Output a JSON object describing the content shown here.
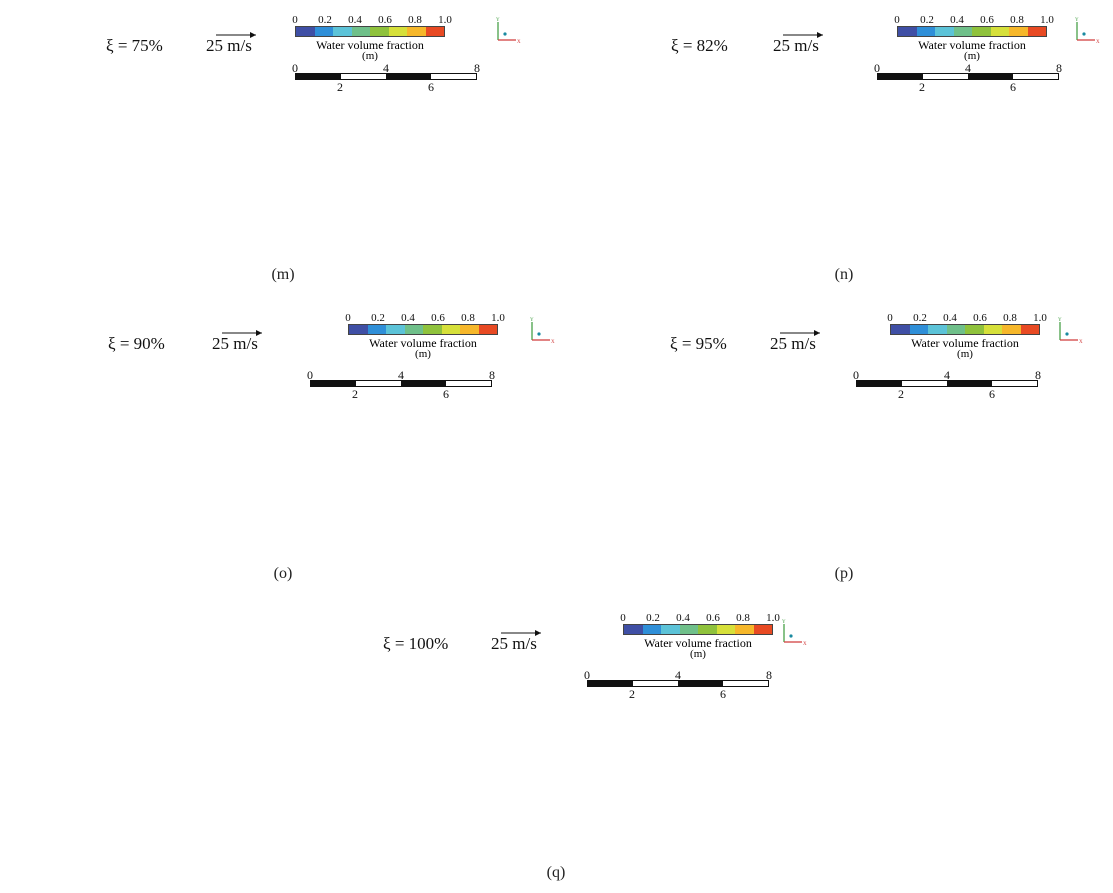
{
  "panels": [
    {
      "caption": "(m)",
      "xi_text": "ξ = 75%",
      "velocity_ref": "25 m/s"
    },
    {
      "caption": "(n)",
      "xi_text": "ξ = 82%",
      "velocity_ref": "25 m/s"
    },
    {
      "caption": "(o)",
      "xi_text": "ξ = 90%",
      "velocity_ref": "25 m/s"
    },
    {
      "caption": "(p)",
      "xi_text": "ξ = 95%",
      "velocity_ref": "25 m/s"
    },
    {
      "caption": "(q)",
      "xi_text": "ξ = 100%",
      "velocity_ref": "25 m/s"
    }
  ],
  "legend": {
    "ticks": [
      "0",
      "0.2",
      "0.4",
      "0.6",
      "0.8",
      "1.0"
    ],
    "title": "Water volume fraction",
    "unit": "(m)",
    "colors": [
      "#3f4fa5",
      "#2f8fd8",
      "#5cc3d8",
      "#6fc08a",
      "#8fc23c",
      "#d6e03a",
      "#f6b72a",
      "#e84a23"
    ]
  },
  "scalebar": {
    "labels_top": [
      "0",
      "4",
      "8"
    ],
    "labels_bottom": [
      "2",
      "6"
    ]
  },
  "axes": {
    "y": "Y",
    "x": "X"
  },
  "colors": {
    "air": "#e63c22",
    "water": "#3a4aa6",
    "interface_light": "#7cc6d8",
    "interface_yellow": "#f2e23a",
    "wall": "#ffffff"
  }
}
